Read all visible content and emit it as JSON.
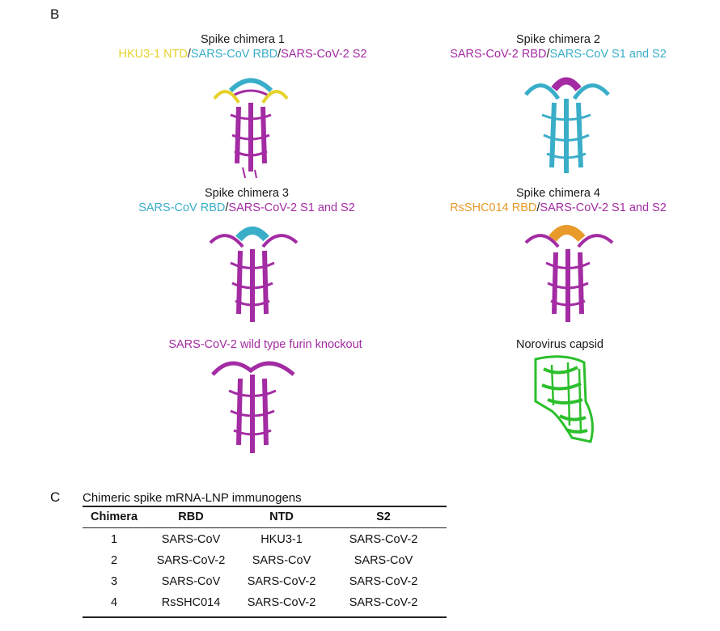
{
  "panel_b": {
    "letter": "B",
    "colors": {
      "sars2": "#a32ba3",
      "sars": "#3aaec9",
      "hku": "#e6d228",
      "rs": "#e89a2a",
      "noro": "#2bbf2b"
    },
    "structures": [
      {
        "title": "Spike chimera 1",
        "segments": [
          {
            "text": "HKU3-1 NTD",
            "color": "#e6d228"
          },
          {
            "text": "/",
            "color": "#222222"
          },
          {
            "text": "SARS-CoV RBD",
            "color": "#3aaec9"
          },
          {
            "text": "/",
            "color": "#222222"
          },
          {
            "text": "SARS-CoV-2 S2",
            "color": "#a32ba3"
          }
        ]
      },
      {
        "title": "Spike chimera 2",
        "segments": [
          {
            "text": "SARS-CoV-2 RBD",
            "color": "#a32ba3"
          },
          {
            "text": "/",
            "color": "#222222"
          },
          {
            "text": "SARS-CoV S1 and S2",
            "color": "#3aaec9"
          }
        ]
      },
      {
        "title": "Spike chimera 3",
        "segments": [
          {
            "text": "SARS-CoV RBD",
            "color": "#3aaec9"
          },
          {
            "text": "/",
            "color": "#222222"
          },
          {
            "text": "SARS-CoV-2 S1 and S2",
            "color": "#a32ba3"
          }
        ]
      },
      {
        "title": "Spike chimera 4",
        "segments": [
          {
            "text": "RsSHC014 RBD",
            "color": "#e89a2a"
          },
          {
            "text": "/",
            "color": "#222222"
          },
          {
            "text": "SARS-CoV-2 S1 and S2",
            "color": "#a32ba3"
          }
        ]
      },
      {
        "title": "",
        "segments": [
          {
            "text": "SARS-CoV-2 wild type furin knockout",
            "color": "#a32ba3"
          }
        ]
      },
      {
        "title": "Norovirus capsid",
        "segments": []
      }
    ]
  },
  "panel_c": {
    "letter": "C",
    "title": "Chimeric spike mRNA-LNP immunogens",
    "headers": [
      "Chimera",
      "RBD",
      "NTD",
      "S2"
    ],
    "rows": [
      [
        "1",
        "SARS-CoV",
        "HKU3-1",
        "SARS-CoV-2"
      ],
      [
        "2",
        "SARS-CoV-2",
        "SARS-CoV",
        "SARS-CoV"
      ],
      [
        "3",
        "SARS-CoV",
        "SARS-CoV-2",
        "SARS-CoV-2"
      ],
      [
        "4",
        "RsSHC014",
        "SARS-CoV-2",
        "SARS-CoV-2"
      ]
    ]
  }
}
